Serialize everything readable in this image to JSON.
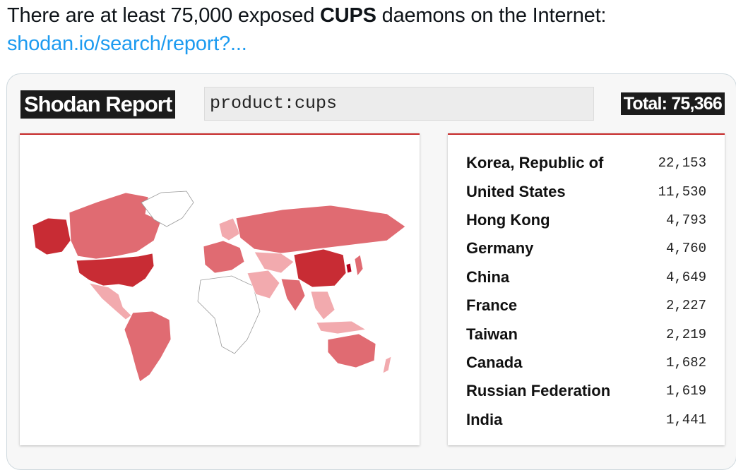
{
  "tweet": {
    "text_before": "There are at least 75,000 exposed ",
    "text_bold": "CUPS",
    "text_after": " daemons on the Internet:",
    "link": "shodan.io/search/report?..."
  },
  "report": {
    "title": "Shodan Report",
    "query": "product:cups",
    "total": "Total: 75,366"
  },
  "colors": {
    "link": "#1d9bf0",
    "accent": "#c62828",
    "map_high": "#c82c34",
    "map_mid": "#e06b72",
    "map_low": "#f2aaae",
    "map_none": "#ffffff"
  },
  "countries": [
    {
      "name": "Korea, Republic of",
      "count": "22,153"
    },
    {
      "name": "United States",
      "count": "11,530"
    },
    {
      "name": "Hong Kong",
      "count": "4,793"
    },
    {
      "name": "Germany",
      "count": "4,760"
    },
    {
      "name": "China",
      "count": "4,649"
    },
    {
      "name": "France",
      "count": "2,227"
    },
    {
      "name": "Taiwan",
      "count": "2,219"
    },
    {
      "name": "Canada",
      "count": "1,682"
    },
    {
      "name": "Russian Federation",
      "count": "1,619"
    },
    {
      "name": "India",
      "count": "1,441"
    }
  ]
}
